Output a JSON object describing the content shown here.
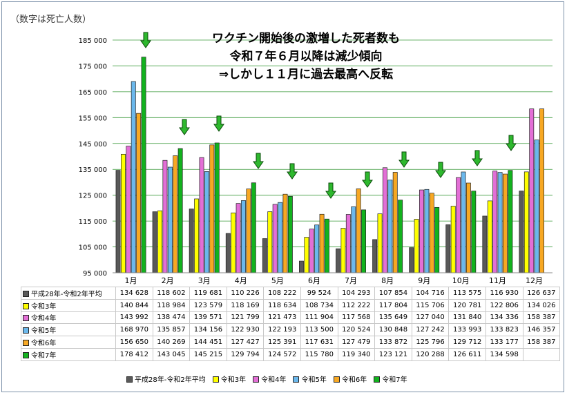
{
  "y_unit_note": "（数字は死亡人数）",
  "headline": [
    "ワクチン開始後の激増した死者数も",
    "令和７年６月以降は減少傾向",
    "⇒しかし１１月に過去最高へ反転"
  ],
  "arrow_color": "#2eb82e",
  "chart_data": {
    "type": "bar",
    "categories": [
      "1月",
      "2月",
      "3月",
      "4月",
      "5月",
      "6月",
      "7月",
      "8月",
      "9月",
      "10月",
      "11月",
      "12月"
    ],
    "ylim": [
      95000,
      185000
    ],
    "yticks": [
      95000,
      105000,
      115000,
      125000,
      135000,
      145000,
      155000,
      165000,
      175000,
      185000
    ],
    "ytick_labels": [
      "95 000",
      "105 000",
      "115 000",
      "125 000",
      "135 000",
      "145 000",
      "155 000",
      "165 000",
      "175 000",
      "185 000"
    ],
    "grid": true,
    "legend_position": "bottom",
    "series": [
      {
        "name": "平成28年-令和2年平均",
        "color": "#595959",
        "values": [
          134628,
          118602,
          119681,
          110226,
          108222,
          99524,
          104293,
          107854,
          104716,
          113575,
          116930,
          126637
        ],
        "labels": [
          "134 628",
          "118 602",
          "119 681",
          "110 226",
          "108 222",
          "99 524",
          "104 293",
          "107 854",
          "104 716",
          "113 575",
          "116 930",
          "126 637"
        ]
      },
      {
        "name": "令和3年",
        "color": "#ffff00",
        "values": [
          140844,
          118984,
          123579,
          118169,
          118634,
          108734,
          112222,
          117804,
          115706,
          120781,
          122806,
          134026
        ],
        "labels": [
          "140 844",
          "118 984",
          "123 579",
          "118 169",
          "118 634",
          "108 734",
          "112 222",
          "117 804",
          "115 706",
          "120 781",
          "122 806",
          "134 026"
        ]
      },
      {
        "name": "令和4年",
        "color": "#e36fd6",
        "values": [
          143992,
          138474,
          139571,
          121799,
          121473,
          111904,
          117568,
          135649,
          127040,
          131840,
          134336,
          158387
        ],
        "labels": [
          "143 992",
          "138 474",
          "139 571",
          "121 799",
          "121 473",
          "111 904",
          "117 568",
          "135 649",
          "127 040",
          "131 840",
          "134 336",
          "158 387"
        ]
      },
      {
        "name": "令和5年",
        "color": "#6bb8ec",
        "values": [
          168970,
          135857,
          134156,
          122930,
          122193,
          113500,
          120524,
          130848,
          127242,
          133993,
          133823,
          146357
        ],
        "labels": [
          "168 970",
          "135 857",
          "134 156",
          "122 930",
          "122 193",
          "113 500",
          "120 524",
          "130 848",
          "127 242",
          "133 993",
          "133 823",
          "146 357"
        ]
      },
      {
        "name": "令和6年",
        "color": "#f7a823",
        "values": [
          156650,
          140269,
          144451,
          127427,
          125391,
          117631,
          127479,
          133872,
          125796,
          129712,
          133177,
          158387
        ],
        "labels": [
          "156 650",
          "140 269",
          "144 451",
          "127 427",
          "125 391",
          "117 631",
          "127 479",
          "133 872",
          "125 796",
          "129 712",
          "133 177",
          "158 387"
        ]
      },
      {
        "name": "令和7年",
        "color": "#12b21e",
        "values": [
          178412,
          143045,
          145215,
          129794,
          124572,
          115780,
          119340,
          123121,
          120288,
          126611,
          134598,
          null
        ],
        "labels": [
          "178 412",
          "143 045",
          "145 215",
          "129 794",
          "124 572",
          "115 780",
          "119 340",
          "123 121",
          "120 288",
          "126 611",
          "134 598",
          ""
        ]
      }
    ]
  }
}
